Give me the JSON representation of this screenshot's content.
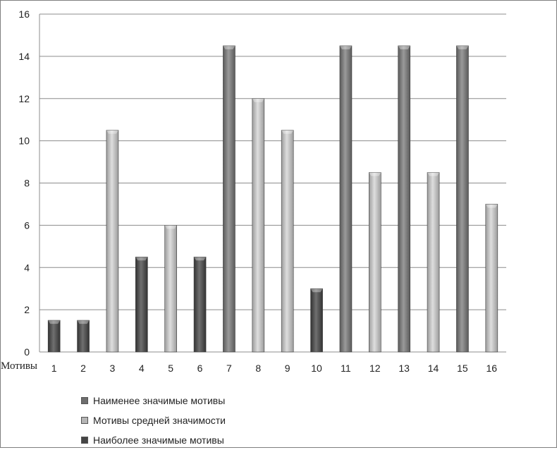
{
  "chart_data": {
    "type": "bar",
    "title": "",
    "xlabel": "Мотивы",
    "ylabel": "",
    "ylim": [
      0,
      16
    ],
    "yticks": [
      0,
      2,
      4,
      6,
      8,
      10,
      12,
      14,
      16
    ],
    "categories": [
      "1",
      "2",
      "3",
      "4",
      "5",
      "6",
      "7",
      "8",
      "9",
      "10",
      "11",
      "12",
      "13",
      "14",
      "15",
      "16"
    ],
    "values": [
      1.5,
      1.5,
      10.5,
      4.5,
      6,
      4.5,
      14.5,
      12,
      10.5,
      3,
      14.5,
      8.5,
      14.5,
      8.5,
      14.5,
      7
    ],
    "groups": [
      2,
      2,
      1,
      2,
      1,
      2,
      0,
      1,
      1,
      2,
      0,
      1,
      0,
      1,
      0,
      1
    ],
    "legend": [
      {
        "label": "Наименее значимые мотивы",
        "color": "#6e6e6e"
      },
      {
        "label": "Мотивы средней значимости",
        "color": "#b5b5b5"
      },
      {
        "label": "Наиболее значимые мотивы",
        "color": "#454545"
      }
    ],
    "legend_position": "bottom-left",
    "grid": true
  }
}
